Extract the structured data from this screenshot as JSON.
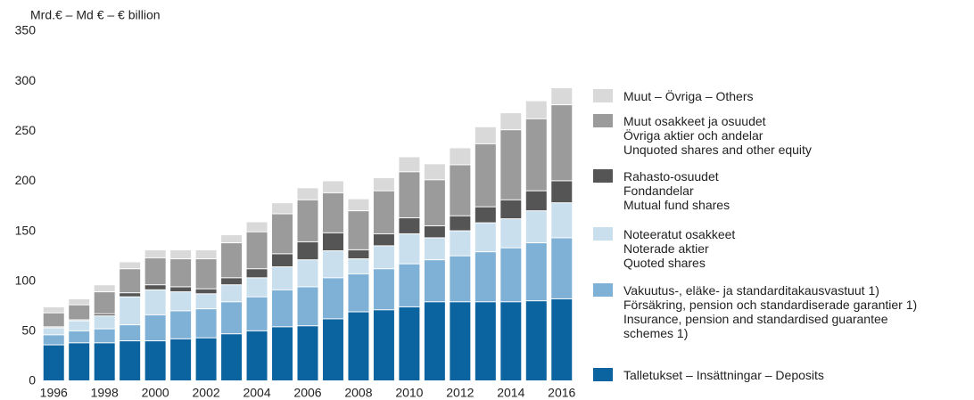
{
  "chart_data": {
    "type": "stacked_bar",
    "ylabel": "Mrd.€ – Md € – € billion",
    "categories": [
      "1996",
      null,
      "1998",
      null,
      "2000",
      null,
      "2002",
      null,
      "2004",
      null,
      "2006",
      null,
      "2008",
      null,
      "2010",
      null,
      "2012",
      null,
      "2014",
      null,
      "2016"
    ],
    "ylim": [
      0,
      350
    ],
    "yticks": [
      0,
      50,
      100,
      150,
      200,
      250,
      300,
      350
    ],
    "grid": false,
    "legend": "right",
    "series": [
      {
        "name": "Talletukset – Insättningar – Deposits",
        "color": "#0b64a0",
        "values": [
          36,
          38,
          38,
          40,
          40,
          42,
          43,
          47,
          50,
          54,
          55,
          62,
          69,
          71,
          74,
          79,
          79,
          79,
          79,
          80,
          82
        ]
      },
      {
        "name": "Vakuutus-, eläke- ja standarditakausvastuut 1)\nFörsäkring, pension och standardiserade garantier 1)\nInsurance, pension and standardised guarantee\nschemes 1)",
        "color": "#7fb0d6",
        "values": [
          10,
          12,
          14,
          16,
          26,
          28,
          29,
          32,
          34,
          37,
          39,
          41,
          38,
          41,
          43,
          42,
          46,
          50,
          54,
          58,
          61
        ]
      },
      {
        "name": "Noteeratut osakkeet\nNoterade aktier\nQuoted shares",
        "color": "#c9dfee",
        "values": [
          7,
          10,
          13,
          28,
          25,
          19,
          15,
          17,
          19,
          23,
          27,
          27,
          15,
          23,
          30,
          22,
          25,
          29,
          29,
          32,
          35
        ]
      },
      {
        "name": "Rahasto-osuudet\nFondandelar\nMutual fund shares",
        "color": "#555555",
        "values": [
          1,
          1,
          2,
          4,
          5,
          5,
          5,
          7,
          9,
          13,
          18,
          18,
          9,
          12,
          16,
          12,
          15,
          16,
          19,
          20,
          22
        ]
      },
      {
        "name": "Muut osakkeet ja osuudet\nÖvriga aktier och andelar\nUnquoted shares and other equity",
        "color": "#9b9b9b",
        "values": [
          14,
          15,
          22,
          24,
          27,
          28,
          30,
          35,
          37,
          40,
          42,
          40,
          39,
          43,
          46,
          46,
          51,
          63,
          70,
          72,
          76
        ]
      },
      {
        "name": "Muut – Övriga – Others",
        "color": "#d9d9d9",
        "values": [
          6,
          6,
          7,
          7,
          8,
          9,
          9,
          8,
          10,
          11,
          12,
          12,
          12,
          13,
          15,
          16,
          17,
          17,
          17,
          18,
          17
        ]
      }
    ]
  }
}
